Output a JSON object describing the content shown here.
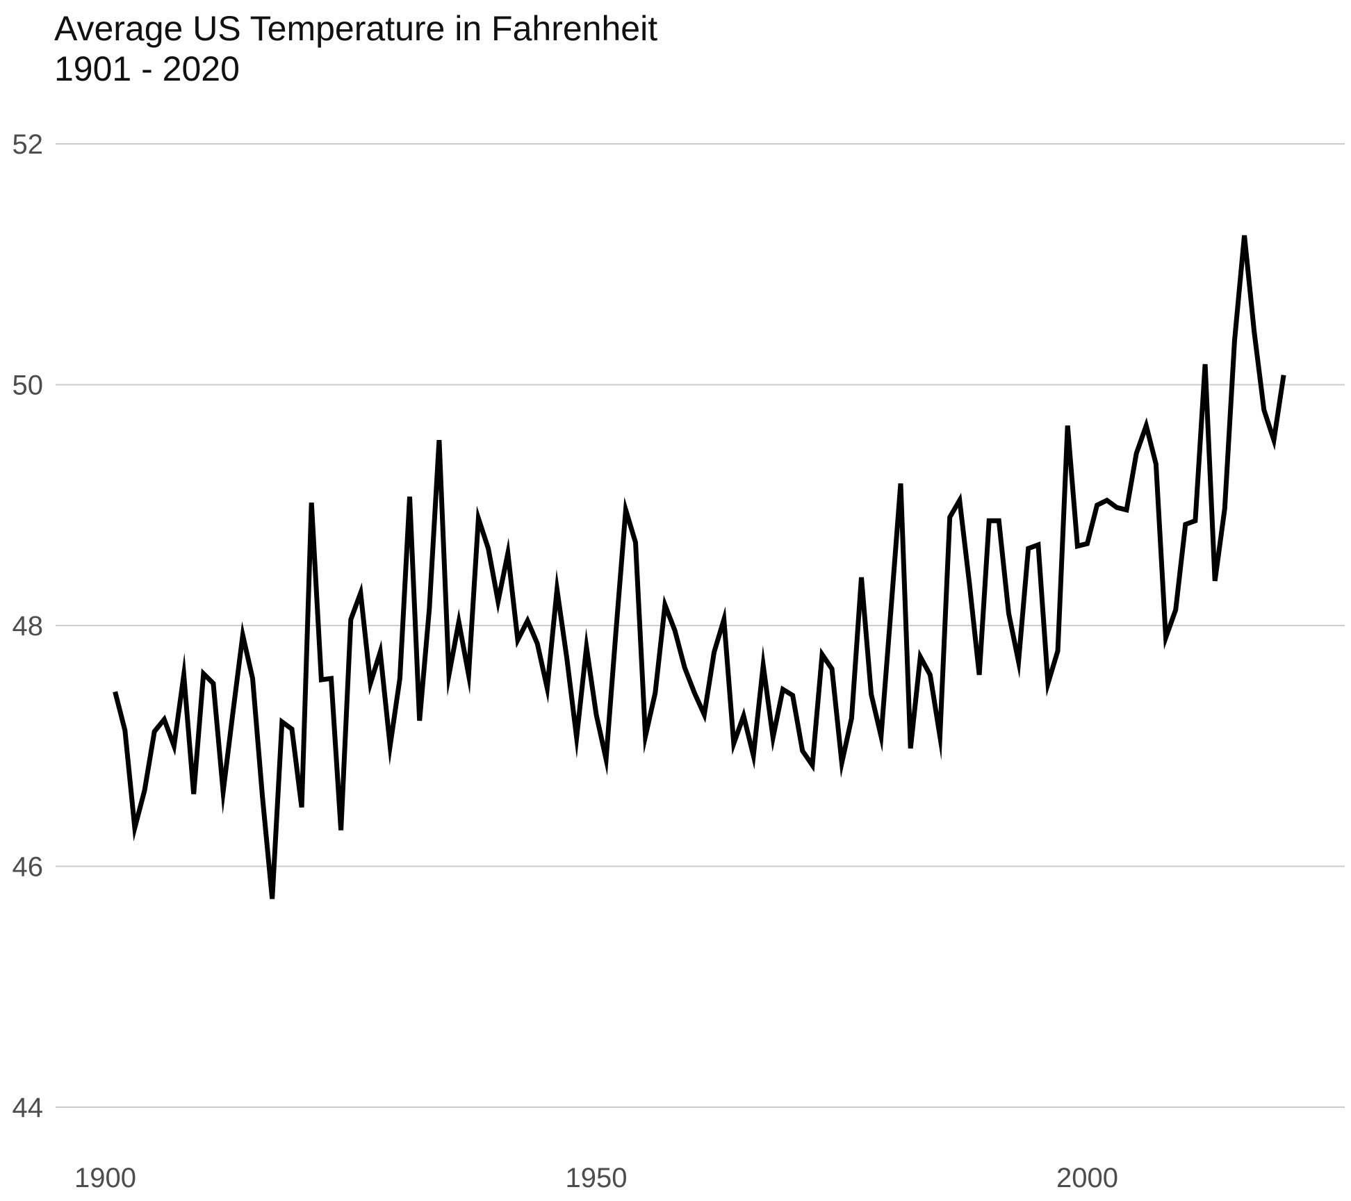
{
  "chart_data": {
    "type": "line",
    "title": "Average US Temperature in Fahrenheit",
    "subtitle": "1901 - 2020",
    "xlabel": "",
    "ylabel": "",
    "xlim": [
      1895,
      2025
    ],
    "ylim": [
      44,
      52
    ],
    "x_ticks": [
      1900,
      1950,
      2000
    ],
    "y_ticks": [
      44,
      46,
      48,
      50,
      52
    ],
    "grid": "horizontal-major",
    "line_color": "#000000",
    "grid_color": "#cccccc",
    "series": [
      {
        "x": [
          1901,
          1902,
          1903,
          1904,
          1905,
          1906,
          1907,
          1908,
          1909,
          1910,
          1911,
          1912,
          1913,
          1914,
          1915,
          1916,
          1917,
          1918,
          1919,
          1920,
          1921,
          1922,
          1923,
          1924,
          1925,
          1926,
          1927,
          1928,
          1929,
          1930,
          1931,
          1932,
          1933,
          1934,
          1935,
          1936,
          1937,
          1938,
          1939,
          1940,
          1941,
          1942,
          1943,
          1944,
          1945,
          1946,
          1947,
          1948,
          1949,
          1950,
          1951,
          1952,
          1953,
          1954,
          1955,
          1956,
          1957,
          1958,
          1959,
          1960,
          1961,
          1962,
          1963,
          1964,
          1965,
          1966,
          1967,
          1968,
          1969,
          1970,
          1971,
          1972,
          1973,
          1974,
          1975,
          1976,
          1977,
          1978,
          1979,
          1980,
          1981,
          1982,
          1983,
          1984,
          1985,
          1986,
          1987,
          1988,
          1989,
          1990,
          1991,
          1992,
          1993,
          1994,
          1995,
          1996,
          1997,
          1998,
          1999,
          2000,
          2001,
          2002,
          2003,
          2004,
          2005,
          2006,
          2007,
          2008,
          2009,
          2010,
          2011,
          2012,
          2013,
          2014,
          2015,
          2016,
          2017,
          2018,
          2019,
          2020
        ],
        "values": [
          47.45,
          47.13,
          46.32,
          46.63,
          47.12,
          47.22,
          47.0,
          47.59,
          46.6,
          47.6,
          47.52,
          46.62,
          47.28,
          47.92,
          47.56,
          46.58,
          45.73,
          47.2,
          47.14,
          46.49,
          49.02,
          47.55,
          47.56,
          46.3,
          48.05,
          48.27,
          47.52,
          47.78,
          47.0,
          47.56,
          49.07,
          47.21,
          48.14,
          49.54,
          47.59,
          48.03,
          47.59,
          48.89,
          48.64,
          48.2,
          48.6,
          47.88,
          48.04,
          47.85,
          47.48,
          48.3,
          47.73,
          47.07,
          47.82,
          47.26,
          46.89,
          47.95,
          48.96,
          48.69,
          47.08,
          47.44,
          48.17,
          47.96,
          47.65,
          47.44,
          47.26,
          47.78,
          48.05,
          47.02,
          47.25,
          46.92,
          47.67,
          47.07,
          47.47,
          47.42,
          46.96,
          46.84,
          47.76,
          47.64,
          46.86,
          47.23,
          48.4,
          47.43,
          47.08,
          48.12,
          49.18,
          46.98,
          47.74,
          47.59,
          47.08,
          48.9,
          49.04,
          48.35,
          47.59,
          48.87,
          48.87,
          48.1,
          47.7,
          48.64,
          48.67,
          47.52,
          47.79,
          49.66,
          48.66,
          48.68,
          49.0,
          49.04,
          48.98,
          48.96,
          49.43,
          49.66,
          49.34,
          47.9,
          48.13,
          48.84,
          48.87,
          50.17,
          48.37,
          48.97,
          50.37,
          51.24,
          50.44,
          49.79,
          49.54,
          50.08
        ]
      }
    ]
  }
}
